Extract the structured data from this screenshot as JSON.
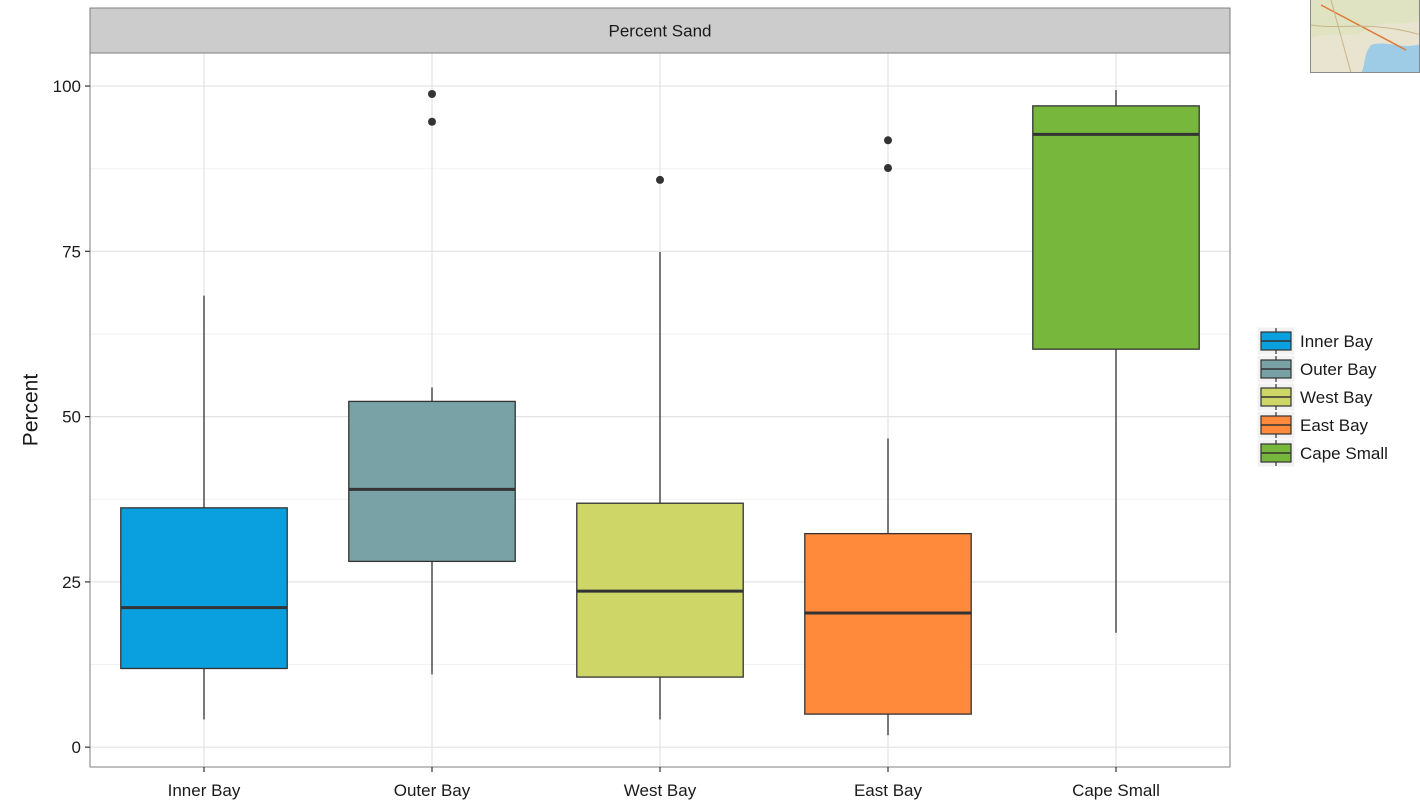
{
  "chart_data": {
    "type": "boxplot",
    "facet_title": "Percent Sand",
    "title": "",
    "xlabel": "",
    "ylabel": "Percent",
    "ylim": [
      -3,
      105
    ],
    "yticks": [
      0,
      25,
      50,
      75,
      100
    ],
    "grid": true,
    "legend_position": "right",
    "categories": [
      "Inner Bay",
      "Outer Bay",
      "West Bay",
      "East Bay",
      "Cape Small"
    ],
    "series": [
      {
        "name": "Inner Bay",
        "color": "#0aa0e0",
        "min": 4.2,
        "q1": 11.9,
        "median": 21.1,
        "q3": 36.2,
        "max": 68.3,
        "outliers": []
      },
      {
        "name": "Outer Bay",
        "color": "#78a2a6",
        "min": 11.0,
        "q1": 28.1,
        "median": 39.0,
        "q3": 52.3,
        "max": 54.4,
        "outliers": [
          94.6,
          98.8
        ]
      },
      {
        "name": "West Bay",
        "color": "#cfd668",
        "min": 4.2,
        "q1": 10.6,
        "median": 23.6,
        "q3": 36.9,
        "max": 74.9,
        "outliers": [
          85.8
        ]
      },
      {
        "name": "East Bay",
        "color": "#ff8a3c",
        "min": 1.8,
        "q1": 5.0,
        "median": 20.3,
        "q3": 32.3,
        "max": 46.7,
        "outliers": [
          87.6,
          91.8
        ]
      },
      {
        "name": "Cape Small",
        "color": "#76b73c",
        "min": 17.3,
        "q1": 60.2,
        "median": 92.7,
        "q3": 97.0,
        "max": 99.4,
        "outliers": []
      }
    ]
  }
}
